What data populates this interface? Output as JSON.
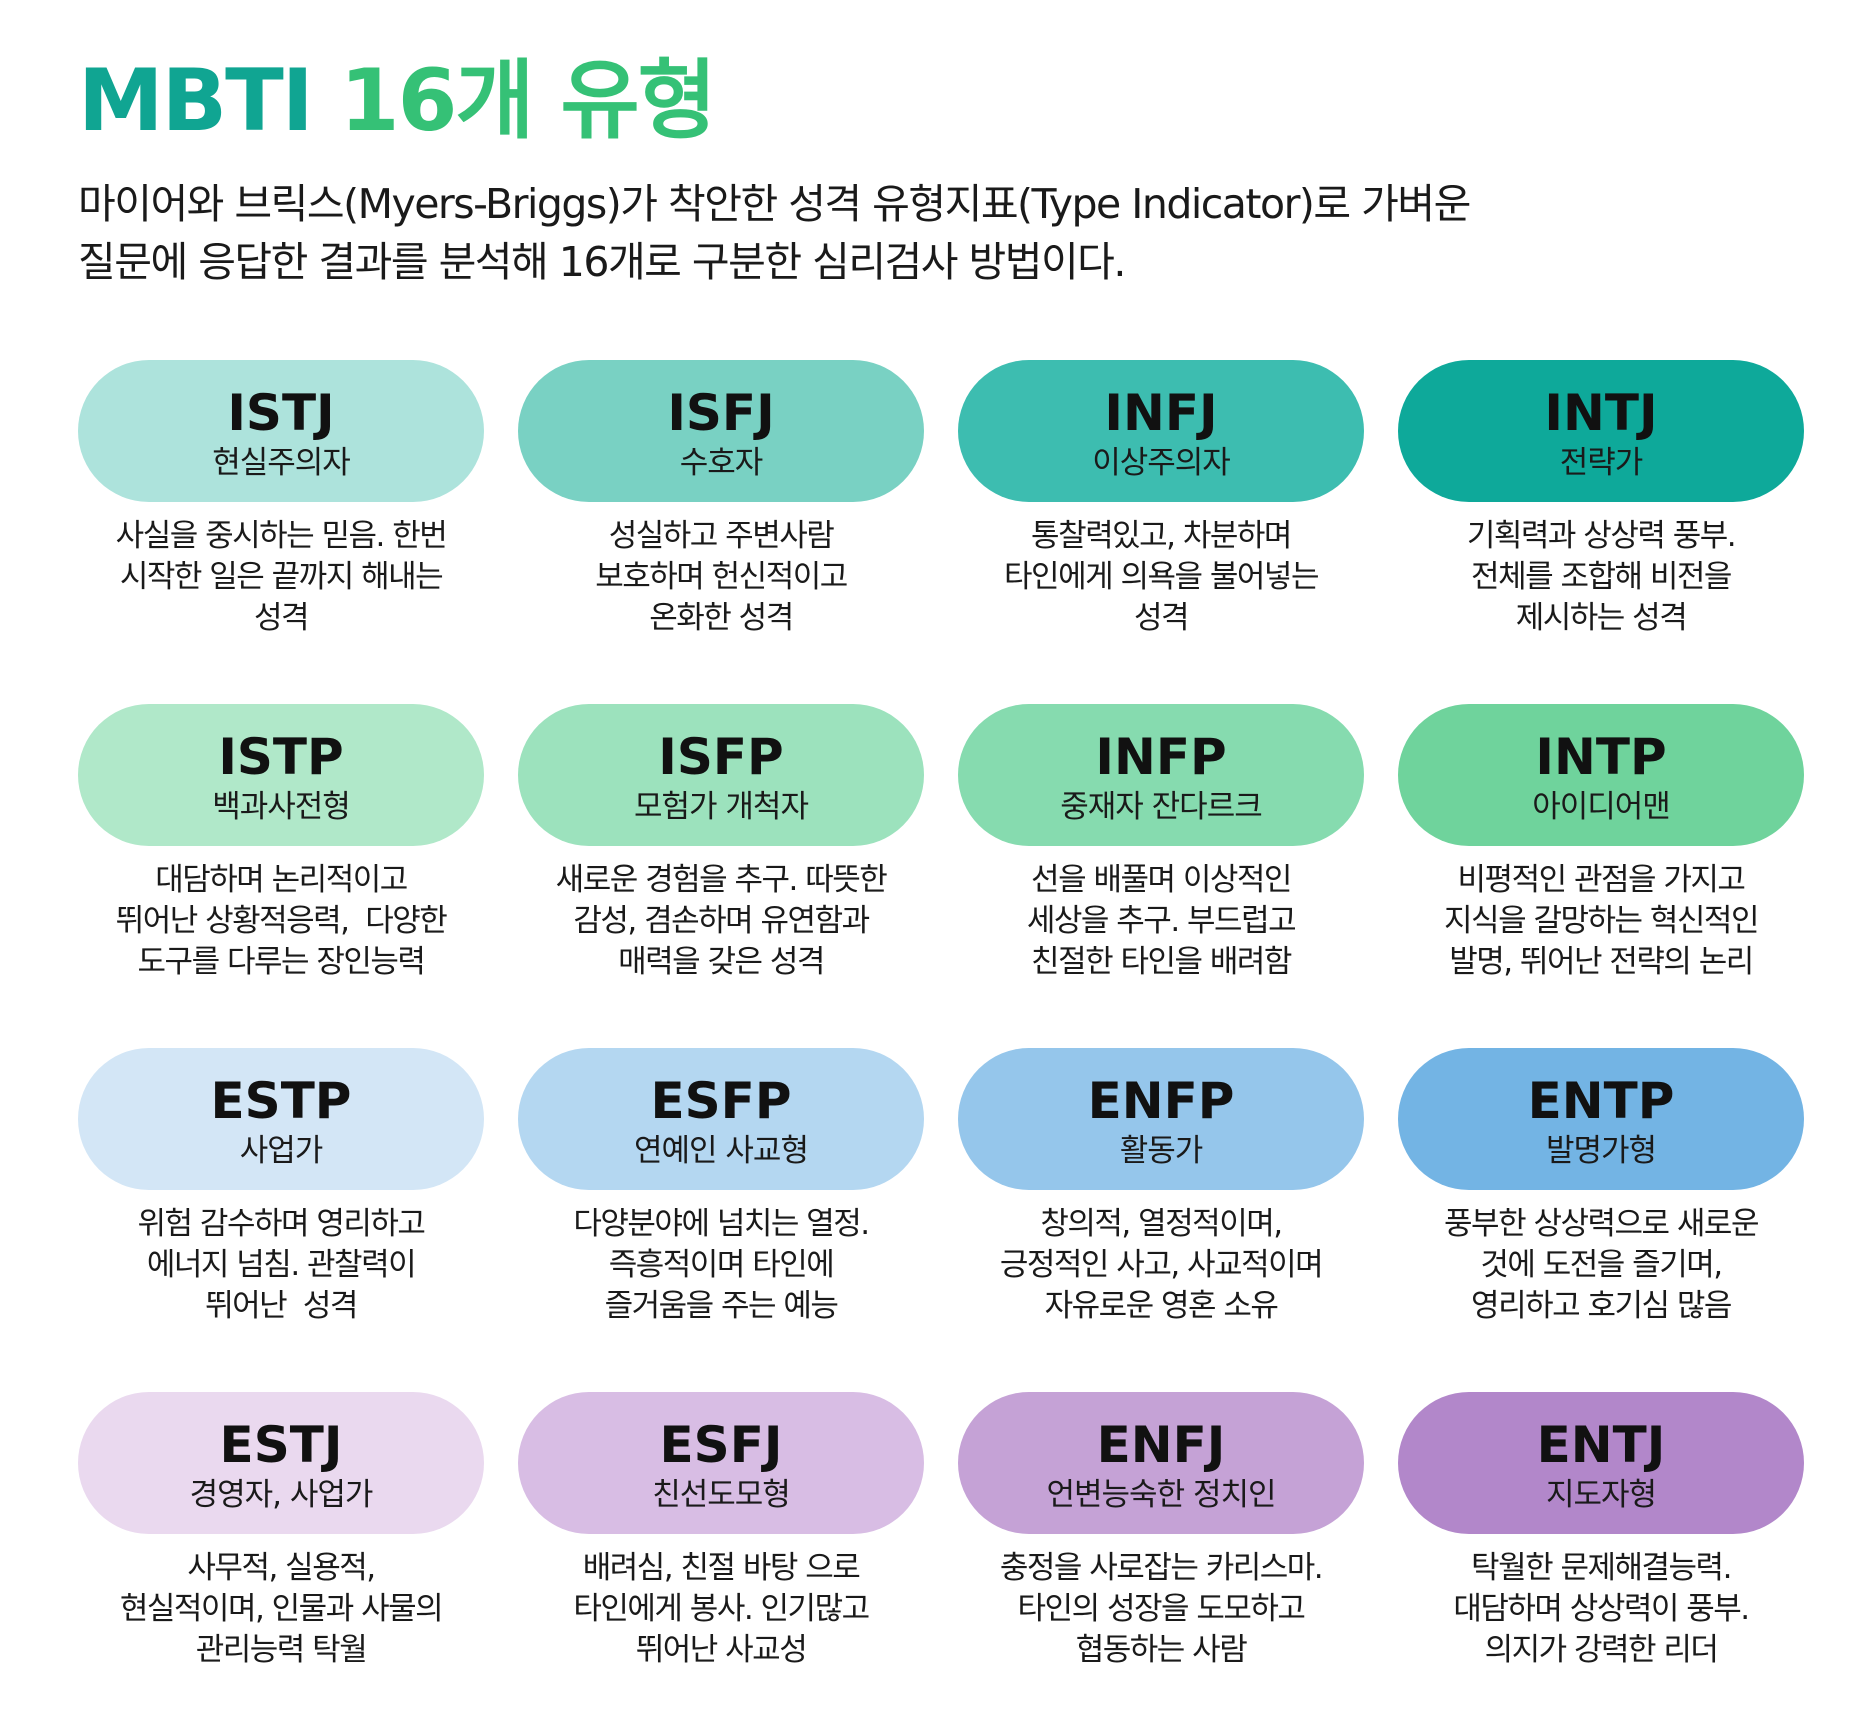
{
  "header": {
    "title_brand": "MBTI",
    "title_rest": "16개 유형",
    "subtitle_line1": "마이어와 브릭스(Myers-Briggs)가 착안한 성격 유형지표(Type Indicator)로 가벼운",
    "subtitle_line2": "질문에 응답한 결과를 분석해 16개로 구분한 심리검사 방법이다."
  },
  "colors": {
    "title_brand": "#10a592",
    "title_rest": "#35c176"
  },
  "types": [
    {
      "code": "ISTJ",
      "name": "현실주의자",
      "color": "#ade3dc",
      "desc": [
        "사실을 중시하는 믿음. 한번",
        "시작한 일은 끝까지 해내는",
        "성격"
      ]
    },
    {
      "code": "ISFJ",
      "name": "수호자",
      "color": "#79d1c3",
      "desc": [
        "성실하고 주변사람",
        "보호하며 헌신적이고",
        "온화한 성격"
      ]
    },
    {
      "code": "INFJ",
      "name": "이상주의자",
      "color": "#3dbdb0",
      "desc": [
        "통찰력있고, 차분하며",
        "타인에게 의욕을 불어넣는",
        "성격"
      ]
    },
    {
      "code": "INTJ",
      "name": "전략가",
      "color": "#0ea99a",
      "desc": [
        "기획력과 상상력 풍부.",
        "전체를 조합해 비전을",
        "제시하는 성격"
      ]
    },
    {
      "code": "ISTP",
      "name": "백과사전형",
      "color": "#b0e8c9",
      "desc": [
        "대담하며 논리적이고",
        "뛰어난 상황적응력,  다양한",
        "도구를 다루는 장인능력"
      ]
    },
    {
      "code": "ISFP",
      "name": "모험가 개척자",
      "color": "#9ce2bd",
      "desc": [
        "새로운 경험을 추구. 따뜻한",
        "감성, 겸손하며 유연함과",
        "매력을 갖은 성격"
      ]
    },
    {
      "code": "INFP",
      "name": "중재자 잔다르크",
      "color": "#86dbaf",
      "desc": [
        "선을 배풀며 이상적인",
        "세상을 추구. 부드럽고",
        "친절한 타인을 배려함"
      ]
    },
    {
      "code": "INTP",
      "name": "아이디어맨",
      "color": "#6fd39c",
      "desc": [
        "비평적인 관점을 가지고",
        "지식을 갈망하는 혁신적인",
        "발명, 뛰어난 전략의 논리"
      ]
    },
    {
      "code": "ESTP",
      "name": "사업가",
      "color": "#d3e6f6",
      "desc": [
        "위험 감수하며 영리하고",
        "에너지 넘침. 관찰력이",
        "뛰어난  성격"
      ]
    },
    {
      "code": "ESFP",
      "name": "연예인 사교형",
      "color": "#b4d7f1",
      "desc": [
        "다양분야에 넘치는 열정.",
        "즉흥적이며 타인에",
        "즐거움을 주는 예능"
      ]
    },
    {
      "code": "ENFP",
      "name": "활동가",
      "color": "#95c6eb",
      "desc": [
        "창의적, 열정적이며,",
        "긍정적인 사고, 사교적이며",
        "자유로운 영혼 소유"
      ]
    },
    {
      "code": "ENTP",
      "name": "발명가형",
      "color": "#73b4e4",
      "desc": [
        "풍부한 상상력으로 새로운",
        "것에 도전을 즐기며,",
        "영리하고 호기심 많음"
      ]
    },
    {
      "code": "ESTJ",
      "name": "경영자,  사업가",
      "color": "#ead9ef",
      "desc": [
        "사무적, 실용적,",
        "현실적이며, 인물과 사물의",
        "관리능력 탁월"
      ]
    },
    {
      "code": "ESFJ",
      "name": "친선도모형",
      "color": "#d8bde4",
      "desc": [
        "배려심, 친절 바탕 으로",
        "타인에게 봉사. 인기많고",
        "뛰어난 사교성"
      ]
    },
    {
      "code": "ENFJ",
      "name": "언변능숙한 정치인",
      "color": "#c5a2d6",
      "desc": [
        "충정을 사로잡는 카리스마.",
        "타인의 성장을 도모하고",
        "협동하는 사람"
      ]
    },
    {
      "code": "ENTJ",
      "name": "지도자형",
      "color": "#b287ca",
      "desc": [
        "탁월한 문제해결능력.",
        "대담하며 상상력이 풍부.",
        "의지가 강력한 리더"
      ]
    }
  ]
}
